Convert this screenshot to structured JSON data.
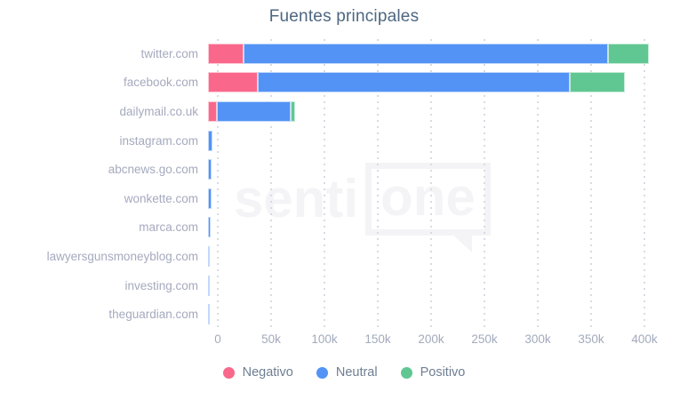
{
  "watermark": {
    "left": "senti",
    "right": "one"
  },
  "chart_data": {
    "type": "bar",
    "orientation": "horizontal",
    "stacked": true,
    "title": "Fuentes principales",
    "xlabel": "",
    "ylabel": "",
    "xlim": [
      0,
      400000
    ],
    "gridlines": "dotted-vertical",
    "legend_position": "bottom",
    "categories": [
      "twitter.com",
      "facebook.com",
      "dailymail.co.uk",
      "instagram.com",
      "abcnews.go.com",
      "wonkette.com",
      "marca.com",
      "lawyersgunsmoneyblog.com",
      "investing.com",
      "theguardian.com"
    ],
    "series": [
      {
        "name": "Negativo",
        "color": "#f9688b",
        "values": [
          33000,
          47000,
          8500,
          0,
          0,
          0,
          0,
          0,
          0,
          0
        ]
      },
      {
        "name": "Neutral",
        "color": "#5293f5",
        "values": [
          342000,
          292000,
          69000,
          4200,
          3400,
          3400,
          2200,
          1800,
          1800,
          1800
        ]
      },
      {
        "name": "Positivo",
        "color": "#60c792",
        "values": [
          38000,
          52000,
          4500,
          0,
          0,
          0,
          0,
          0,
          0,
          0
        ]
      }
    ],
    "x_ticks": [
      "0",
      "50k",
      "100k",
      "150k",
      "200k",
      "250k",
      "300k",
      "350k",
      "400k"
    ],
    "x_tick_values": [
      0,
      50000,
      100000,
      150000,
      200000,
      250000,
      300000,
      350000,
      400000
    ]
  }
}
